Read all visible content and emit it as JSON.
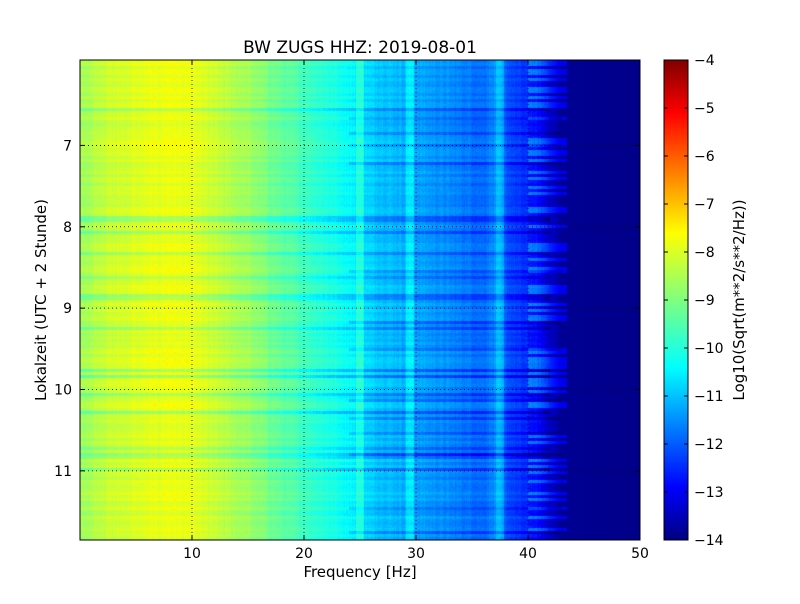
{
  "chart_data": {
    "type": "heatmap",
    "title": "BW ZUGS HHZ: 2019-08-01",
    "xlabel": "Frequency [Hz]",
    "ylabel": "Lokalzeit (UTC + 2 Stunde)",
    "xlim": [
      0,
      50
    ],
    "ylim": [
      5.95,
      11.85
    ],
    "y_inverted": true,
    "grid": true,
    "x_ticks": [
      10,
      20,
      30,
      40,
      50
    ],
    "y_ticks": [
      7,
      8,
      9,
      10,
      11
    ],
    "colormap": "jet",
    "colorbar": {
      "label": "Log10(Sqrt(m**2/s**2/Hz))",
      "range": [
        -14,
        -4
      ],
      "ticks": [
        -4,
        -5,
        -6,
        -7,
        -8,
        -9,
        -10,
        -11,
        -12,
        -13,
        -14
      ]
    },
    "spectral_profile": {
      "frequency_hz": [
        0,
        2,
        5,
        8,
        10,
        12,
        15,
        18,
        20,
        22,
        24,
        25,
        26,
        28,
        30,
        32,
        34,
        36,
        37,
        38,
        39,
        40,
        41,
        42,
        43,
        50
      ],
      "log10_amplitude": [
        -8.7,
        -8.3,
        -8.1,
        -7.9,
        -8.0,
        -8.3,
        -8.7,
        -9.3,
        -9.6,
        -9.9,
        -10.2,
        -10.5,
        -10.7,
        -10.9,
        -11.1,
        -11.3,
        -11.5,
        -11.7,
        -11.3,
        -11.9,
        -12.2,
        -12.4,
        -12.7,
        -13.3,
        -13.8,
        -13.9
      ]
    },
    "line_features_hz": [
      25,
      29.5,
      37.5
    ]
  },
  "colors": {
    "jet_stops": [
      "#00007f",
      "#0000ff",
      "#007fff",
      "#00ffff",
      "#7fff7f",
      "#ffff00",
      "#ff7f00",
      "#ff0000",
      "#7f0000"
    ],
    "axis": "#000000",
    "grid": "#000000"
  }
}
